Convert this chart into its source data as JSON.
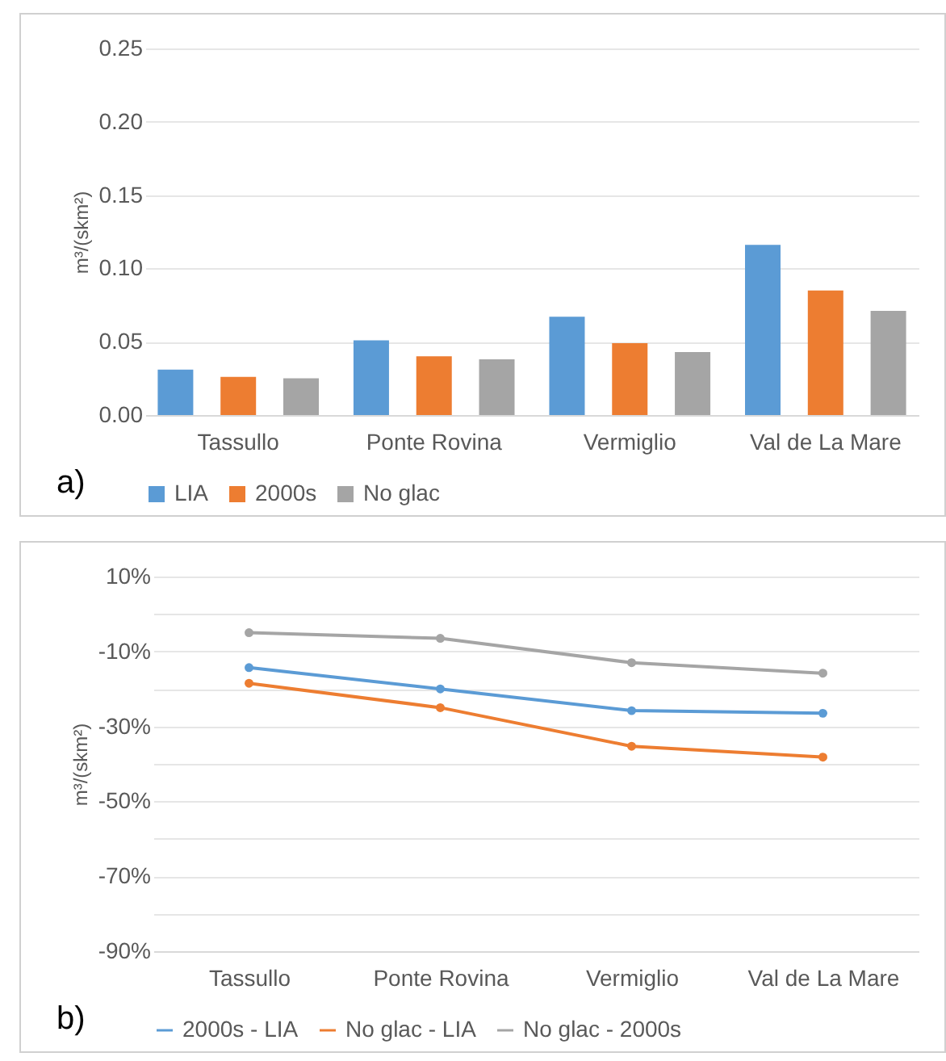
{
  "chart_data": [
    {
      "type": "bar",
      "ylabel": "m³/(skm²)",
      "categories": [
        "Tassullo",
        "Ponte Rovina",
        "Vermiglio",
        "Val de La Mare"
      ],
      "series": [
        {
          "name": "LIA",
          "color": "#5b9bd5",
          "values": [
            0.031,
            0.051,
            0.067,
            0.116
          ]
        },
        {
          "name": "2000s",
          "color": "#ed7d31",
          "values": [
            0.026,
            0.04,
            0.049,
            0.085
          ]
        },
        {
          "name": "No glac",
          "color": "#a5a5a5",
          "values": [
            0.025,
            0.038,
            0.043,
            0.071
          ]
        }
      ],
      "ylim": [
        0,
        0.25
      ],
      "yticks": [
        {
          "value": 0,
          "label": "0.00"
        },
        {
          "value": 0.05,
          "label": "0.05"
        },
        {
          "value": 0.1,
          "label": "0.10"
        },
        {
          "value": 0.15,
          "label": "0.15"
        },
        {
          "value": 0.2,
          "label": "0.20"
        },
        {
          "value": 0.25,
          "label": "0.25"
        }
      ],
      "grid": "y",
      "legend": "bottom",
      "annotations": [
        "a)"
      ]
    },
    {
      "type": "line",
      "ylabel": "m³/(skm²)",
      "categories": [
        "Tassullo",
        "Ponte Rovina",
        "Vermiglio",
        "Val de La Mare"
      ],
      "series": [
        {
          "name": "2000s - LIA",
          "color": "#5b9bd5",
          "values": [
            -14.3,
            -20,
            -25.8,
            -26.5
          ]
        },
        {
          "name": "No glac - LIA",
          "color": "#ed7d31",
          "values": [
            -18.5,
            -25,
            -35.3,
            -38.2
          ]
        },
        {
          "name": "No glac - 2000s",
          "color": "#a5a5a5",
          "values": [
            -5,
            -6.5,
            -13,
            -15.8
          ]
        }
      ],
      "ylim": [
        -90,
        10
      ],
      "yticks": [
        {
          "value": 10,
          "label": "10%"
        },
        {
          "value": 0,
          "label": null
        },
        {
          "value": -10,
          "label": "-10%"
        },
        {
          "value": -20,
          "label": null
        },
        {
          "value": -30,
          "label": "-30%"
        },
        {
          "value": -40,
          "label": null
        },
        {
          "value": -50,
          "label": "-50%"
        },
        {
          "value": -60,
          "label": null
        },
        {
          "value": -70,
          "label": "-70%"
        },
        {
          "value": -80,
          "label": null
        },
        {
          "value": -90,
          "label": "-90%"
        }
      ],
      "grid": "y",
      "legend": "bottom",
      "marker": "circle",
      "line_style": "solid",
      "annotations": [
        "b)"
      ]
    }
  ]
}
